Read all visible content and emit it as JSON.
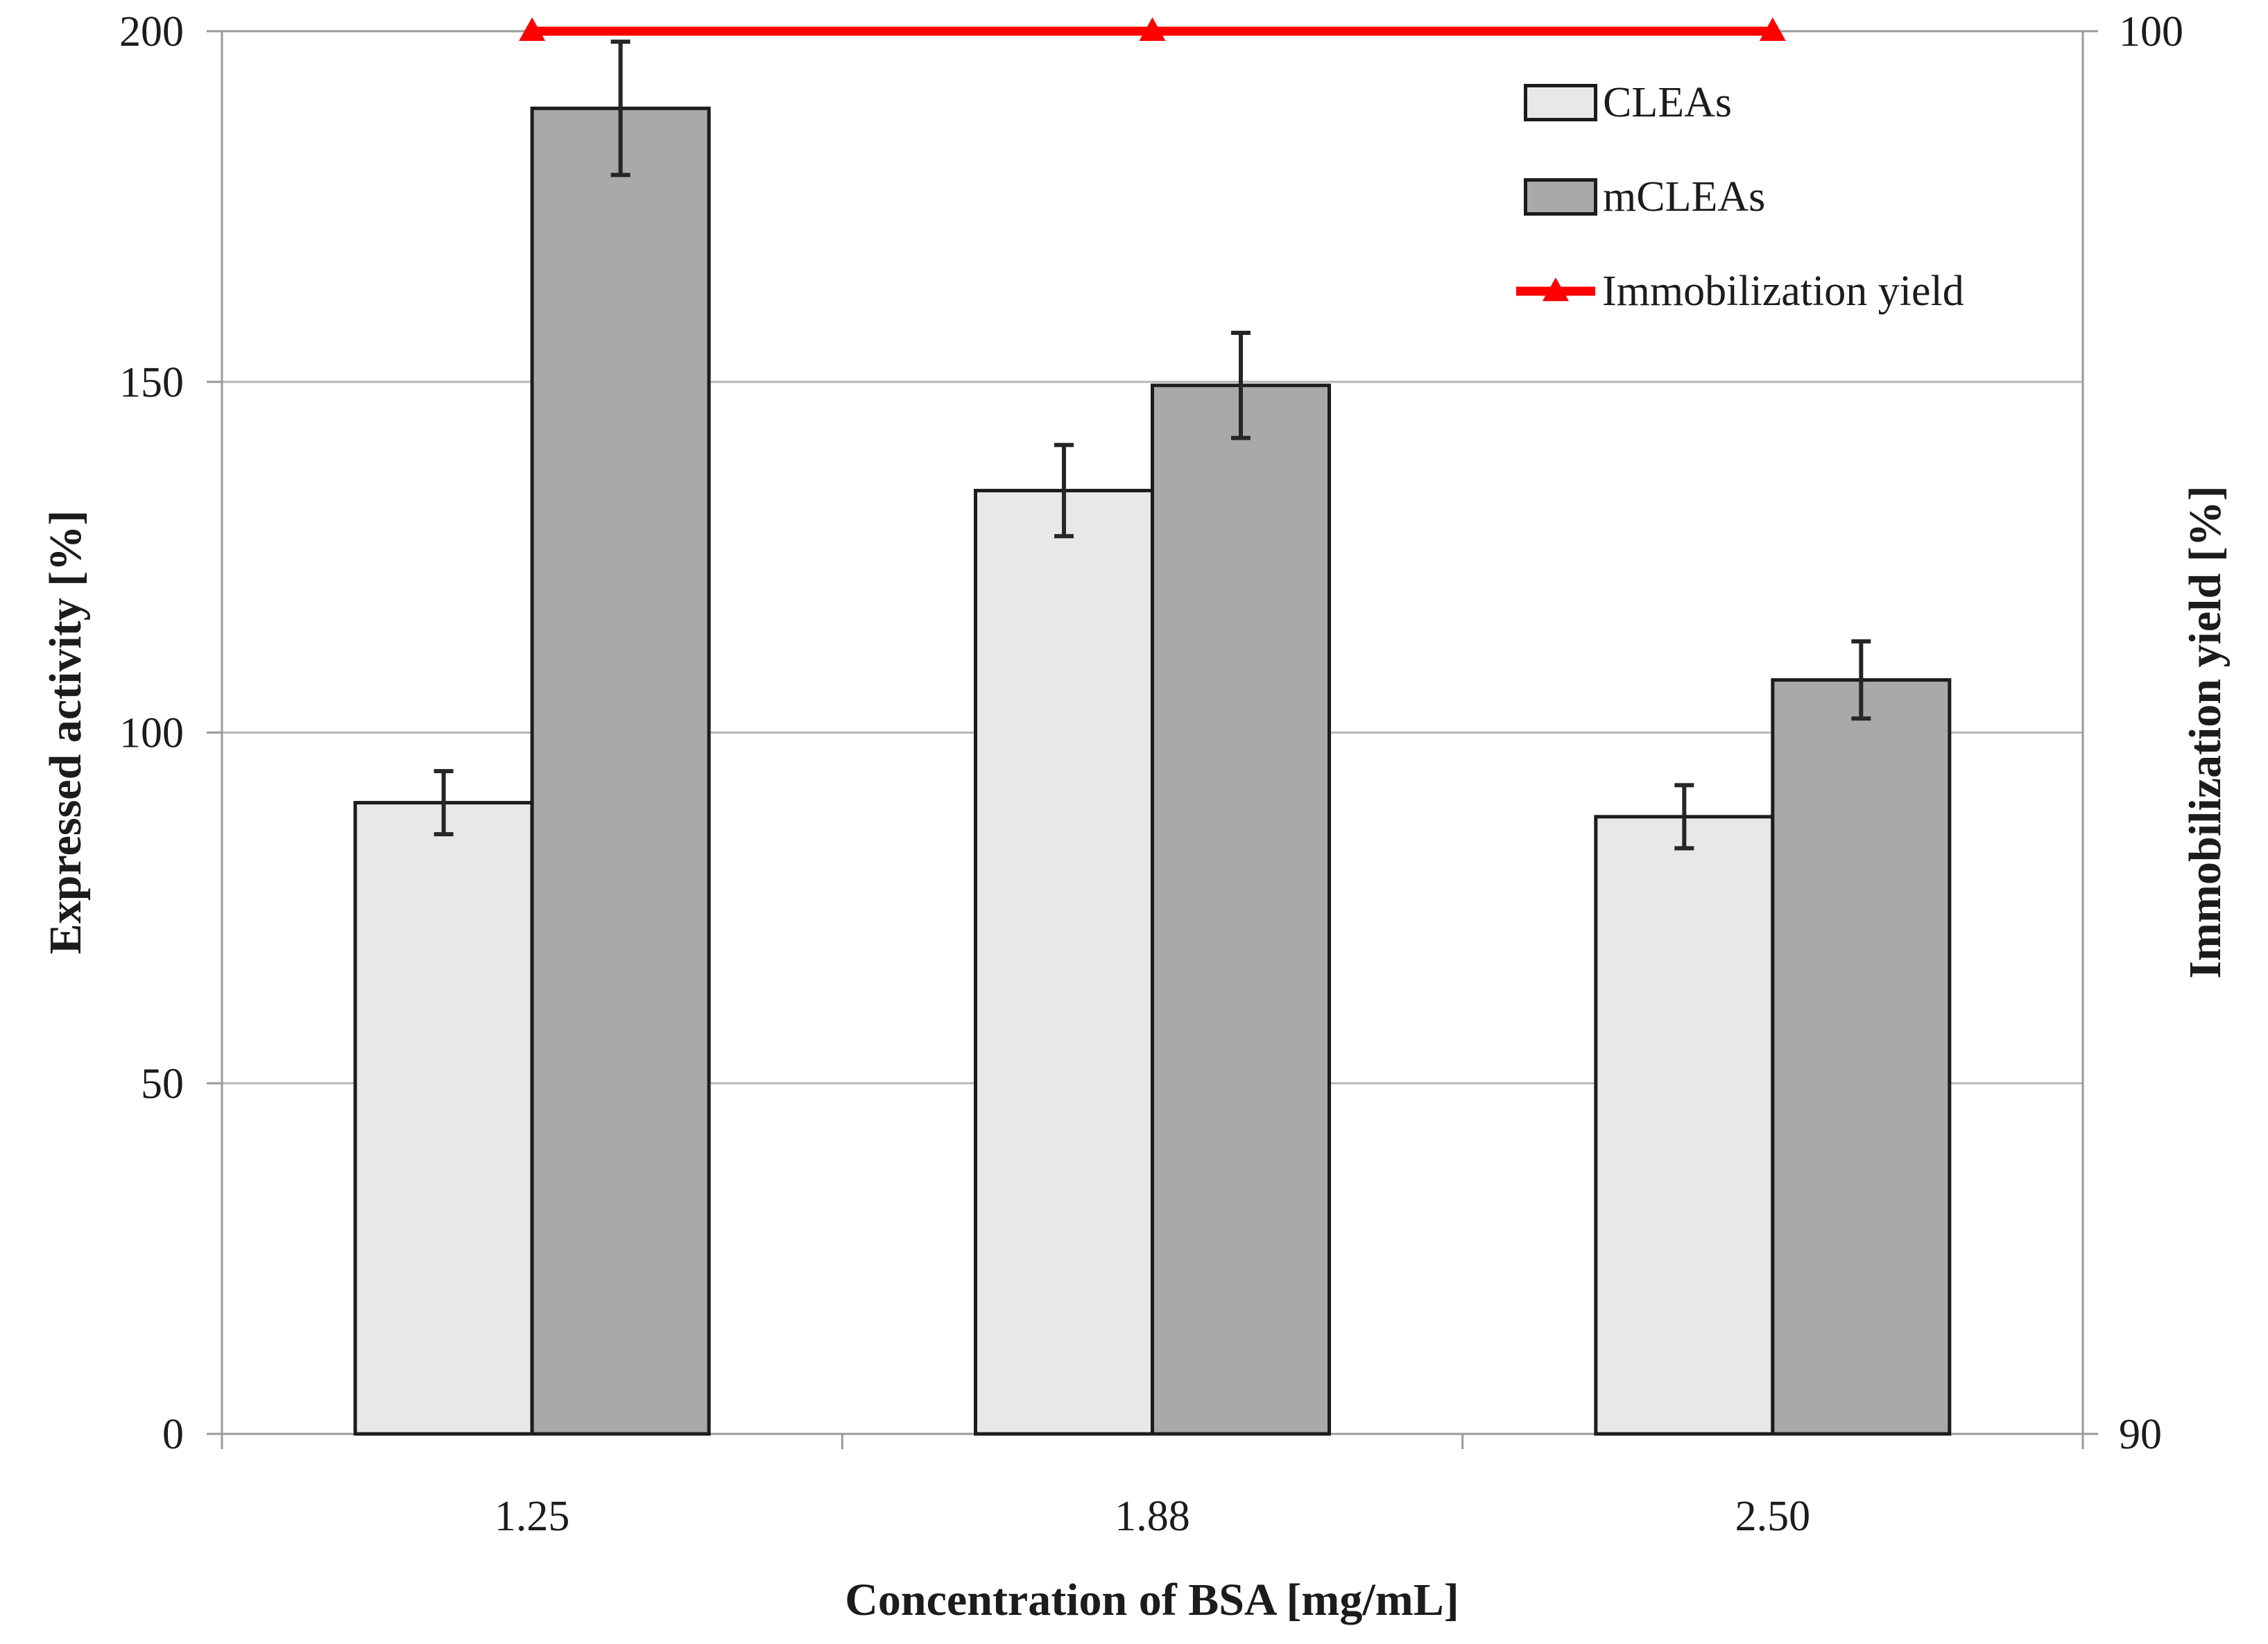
{
  "colors": {
    "bar_clea_fill": "#e8e8e8",
    "bar_mclea_fill": "#a9a9a9",
    "bar_border": "#1c1c1c",
    "line_red": "#fe0000",
    "grid": "#b7b7b7",
    "axis": "#9a9a9a",
    "text": "#1c1c1c",
    "error_bar": "#262626"
  },
  "chart_data": {
    "type": "bar",
    "title": "",
    "categories": [
      "1.25",
      "1.88",
      "2.50"
    ],
    "xlabel": "Concentration of BSA [mg/mL]",
    "ylabel_left": "Expressed activity [%]",
    "ylabel_right": "Immobilization yield [%]",
    "left_axis": {
      "min": 0,
      "max": 200,
      "ticks": [
        0,
        50,
        100,
        150,
        200
      ]
    },
    "right_axis": {
      "min": 90,
      "max": 100,
      "ticks": [
        90,
        100
      ]
    },
    "gridlines": [
      50,
      100,
      150
    ],
    "grid_on": true,
    "legend_position": "top-right-inside",
    "series": [
      {
        "name": "CLEAs",
        "type": "bar",
        "axis": "left",
        "color": "#e8e8e8",
        "values": [
          90,
          134.5,
          88
        ],
        "errors": [
          4.5,
          6.5,
          4.5
        ]
      },
      {
        "name": "mCLEAs",
        "type": "bar",
        "axis": "left",
        "color": "#a9a9a9",
        "values": [
          189,
          149.5,
          107.5
        ],
        "errors": [
          9.5,
          7.5,
          5.5
        ]
      },
      {
        "name": "Immobilization yield",
        "type": "line",
        "axis": "right",
        "color": "#fe0000",
        "marker": "triangle",
        "values": [
          100,
          100,
          100
        ]
      }
    ]
  }
}
